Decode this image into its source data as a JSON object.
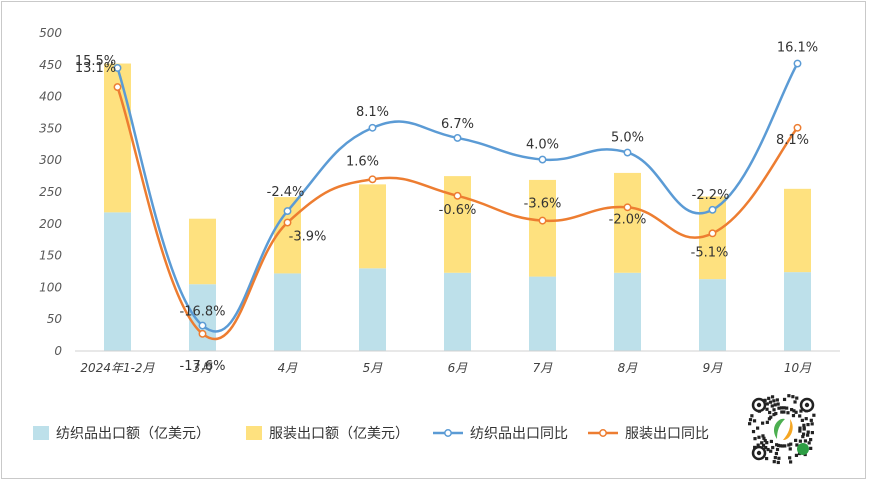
{
  "chart_data": {
    "type": "bar+line",
    "categories": [
      "2024年1-2月",
      "3月",
      "4月",
      "5月",
      "6月",
      "7月",
      "8月",
      "9月",
      "10月"
    ],
    "ylim": [
      0,
      500
    ],
    "yticks": [
      0,
      50,
      100,
      150,
      200,
      250,
      300,
      350,
      400,
      450,
      500
    ],
    "grid": false,
    "legend_position": "bottom",
    "stacked_bars": true,
    "bar_series": [
      {
        "name": "纺织品出口额（亿美元）",
        "color": "#bde0ea",
        "values": [
          218,
          105,
          122,
          130,
          123,
          117,
          123,
          113,
          124
        ]
      },
      {
        "name": "服装出口额（亿美元）",
        "color": "#fee17f",
        "values": [
          234,
          103,
          120,
          132,
          152,
          152,
          157,
          130,
          131
        ]
      }
    ],
    "line_series": [
      {
        "name": "纺织品出口同比",
        "color": "#5b9bd5",
        "labels": [
          "15.5%",
          "-16.8%",
          "-2.4%",
          "8.1%",
          "6.7%",
          "4.0%",
          "5.0%",
          "-2.2%",
          "16.1%"
        ],
        "plot_values": [
          445,
          40,
          220,
          351,
          335,
          301,
          312,
          222,
          452
        ]
      },
      {
        "name": "服装出口同比",
        "color": "#ed7d31",
        "labels": [
          "13.1%",
          "-17.6%",
          "-3.9%",
          "1.6%",
          "-0.6%",
          "-3.6%",
          "-2.0%",
          "-5.1%",
          "8.1%"
        ],
        "plot_values": [
          415,
          27,
          202,
          270,
          244,
          205,
          226,
          185,
          351
        ]
      }
    ]
  },
  "qr_code_icon": "wechat-mini-program-code"
}
